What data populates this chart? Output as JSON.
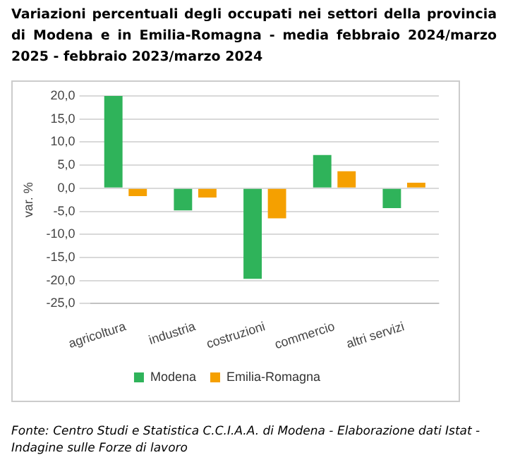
{
  "chart_data": {
    "type": "bar",
    "title": "Variazioni percentuali degli occupati nei settori della provincia di Modena e in Emilia-Romagna - media febbraio 2024/marzo 2025 - febbraio 2023/marzo 2024",
    "ylabel": "var. %",
    "categories": [
      "agricoltura",
      "industria",
      "costruzioni",
      "commercio",
      "altri servizi"
    ],
    "series": [
      {
        "name": "Modena",
        "color": "#2fb35a",
        "values": [
          20.0,
          -4.8,
          -19.6,
          7.2,
          -4.3
        ]
      },
      {
        "name": "Emilia-Romagna",
        "color": "#f5a000",
        "values": [
          -1.7,
          -2.0,
          -6.5,
          3.7,
          1.2
        ]
      }
    ],
    "ylim": [
      -25,
      20
    ],
    "yticks": [
      {
        "value": -25,
        "label": "-25,0"
      },
      {
        "value": -20,
        "label": "-20,0"
      },
      {
        "value": -15,
        "label": "-15,0"
      },
      {
        "value": -10,
        "label": "-10,0"
      },
      {
        "value": -5,
        "label": "-5,0"
      },
      {
        "value": 0,
        "label": "0,0"
      },
      {
        "value": 5,
        "label": "5,0"
      },
      {
        "value": 10,
        "label": "10,0"
      },
      {
        "value": 15,
        "label": "15,0"
      },
      {
        "value": 20,
        "label": "20,0"
      }
    ],
    "grid": "y",
    "legend": "bottom",
    "annotations": [
      "Fonte: Centro Studi e Statistica C.C.I.A.A. di Modena - Elaborazione dati Istat - Indagine sulle Forze di lavoro"
    ]
  }
}
